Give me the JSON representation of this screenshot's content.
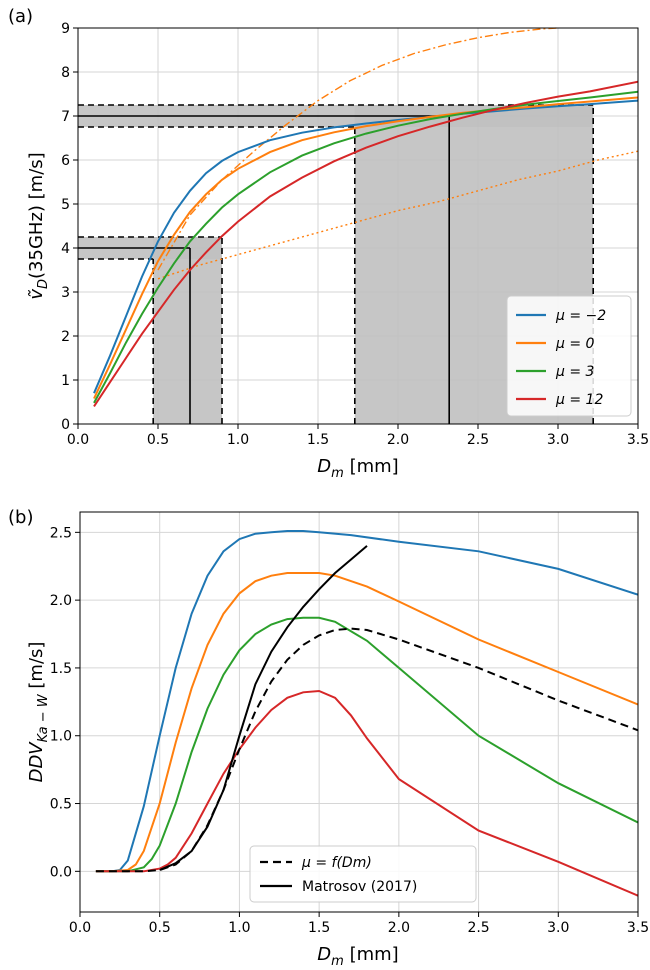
{
  "chart_data": [
    {
      "panel_label": "(a)",
      "type": "line",
      "xlabel_main": "D",
      "xlabel_sub": "m",
      "xlabel_unit": " [mm]",
      "ylabel_pre": "ṽ",
      "ylabel_sub": "D",
      "ylabel_post": "(35GHz) [m/s]",
      "xlim": [
        0.0,
        3.5
      ],
      "ylim": [
        0,
        9
      ],
      "xticks": [
        "0.0",
        "0.5",
        "1.0",
        "1.5",
        "2.0",
        "2.5",
        "3.0",
        "3.5"
      ],
      "yticks": [
        "0",
        "1",
        "2",
        "3",
        "4",
        "5",
        "6",
        "7",
        "8",
        "9"
      ],
      "grid": true,
      "legend_position": "lower-right",
      "x": [
        0.1,
        0.2,
        0.3,
        0.4,
        0.5,
        0.6,
        0.7,
        0.8,
        0.9,
        1.0,
        1.2,
        1.4,
        1.6,
        1.8,
        2.0,
        2.2,
        2.4,
        2.6,
        2.8,
        3.0,
        3.2,
        3.5
      ],
      "series": [
        {
          "name": "μ = −2",
          "color": "#1f77b4",
          "values": [
            0.7,
            1.55,
            2.45,
            3.35,
            4.15,
            4.8,
            5.3,
            5.7,
            5.98,
            6.18,
            6.45,
            6.62,
            6.74,
            6.83,
            6.91,
            6.98,
            7.05,
            7.11,
            7.17,
            7.22,
            7.27,
            7.35
          ]
        },
        {
          "name": "μ = 0",
          "color": "#ff7f0e",
          "values": [
            0.58,
            1.35,
            2.15,
            2.95,
            3.7,
            4.3,
            4.82,
            5.22,
            5.55,
            5.8,
            6.18,
            6.45,
            6.63,
            6.77,
            6.88,
            6.98,
            7.07,
            7.14,
            7.2,
            7.27,
            7.33,
            7.42
          ]
        },
        {
          "name": "μ = 3",
          "color": "#2ca02c",
          "values": [
            0.48,
            1.15,
            1.85,
            2.5,
            3.1,
            3.65,
            4.15,
            4.55,
            4.92,
            5.22,
            5.72,
            6.1,
            6.38,
            6.6,
            6.78,
            6.93,
            7.05,
            7.16,
            7.26,
            7.34,
            7.42,
            7.55
          ]
        },
        {
          "name": "μ = 12",
          "color": "#d62728",
          "values": [
            0.4,
            0.95,
            1.5,
            2.05,
            2.55,
            3.05,
            3.5,
            3.9,
            4.27,
            4.6,
            5.17,
            5.6,
            5.97,
            6.28,
            6.54,
            6.76,
            6.96,
            7.14,
            7.3,
            7.44,
            7.56,
            7.78
          ]
        }
      ],
      "dashdot_curve": {
        "color": "#ff7f0e",
        "x": [
          0.5,
          0.7,
          0.9,
          1.1,
          1.3,
          1.5,
          1.7,
          1.9,
          2.1,
          2.3,
          2.5,
          2.7,
          2.9,
          3.0
        ],
        "values": [
          3.5,
          4.75,
          5.55,
          6.2,
          6.8,
          7.35,
          7.8,
          8.15,
          8.42,
          8.62,
          8.78,
          8.9,
          8.98,
          9.0
        ]
      },
      "dotted_curve": {
        "color": "#ff7f0e",
        "x": [
          0.5,
          0.75,
          1.0,
          1.25,
          1.5,
          1.75,
          2.0,
          2.25,
          2.5,
          2.75,
          3.0,
          3.25,
          3.5
        ],
        "values": [
          3.3,
          3.6,
          3.85,
          4.1,
          4.35,
          4.6,
          4.85,
          5.05,
          5.3,
          5.55,
          5.75,
          6.0,
          6.2
        ]
      },
      "shaded_regions": [
        {
          "x": [
            0.0,
            0.9
          ],
          "y": [
            3.75,
            4.25
          ]
        },
        {
          "x": [
            0.47,
            0.9
          ],
          "y": [
            0,
            4.25
          ]
        },
        {
          "x": [
            0.0,
            3.22
          ],
          "y": [
            6.75,
            7.25
          ]
        },
        {
          "x": [
            1.73,
            3.22
          ],
          "y": [
            0,
            7.25
          ]
        }
      ],
      "dashed_h_lines": [
        {
          "y": 3.75,
          "x": [
            0.0,
            0.47
          ]
        },
        {
          "y": 4.25,
          "x": [
            0.0,
            0.9
          ]
        },
        {
          "y": 6.75,
          "x": [
            0.0,
            1.73
          ]
        },
        {
          "y": 7.25,
          "x": [
            0.0,
            3.22
          ]
        }
      ],
      "dashed_v_lines": [
        {
          "x": 0.47,
          "y": [
            0,
            3.75
          ]
        },
        {
          "x": 0.9,
          "y": [
            0,
            4.25
          ]
        },
        {
          "x": 1.73,
          "y": [
            0,
            6.75
          ]
        },
        {
          "x": 3.22,
          "y": [
            0,
            7.25
          ]
        }
      ],
      "solid_h_lines": [
        {
          "y": 4.0,
          "x": [
            0.0,
            0.7
          ]
        },
        {
          "y": 7.0,
          "x": [
            0.0,
            2.32
          ]
        }
      ],
      "solid_v_lines": [
        {
          "x": 0.7,
          "y": [
            0,
            4.0
          ]
        },
        {
          "x": 2.32,
          "y": [
            0,
            7.0
          ]
        }
      ]
    },
    {
      "panel_label": "(b)",
      "type": "line",
      "xlabel_main": "D",
      "xlabel_sub": "m",
      "xlabel_unit": " [mm]",
      "ylabel_pre": "DDV",
      "ylabel_sub": "Ka − W",
      "ylabel_post": " [m/s]",
      "xlim": [
        0.0,
        3.5
      ],
      "ylim": [
        -0.3,
        2.65
      ],
      "xticks": [
        "0.0",
        "0.5",
        "1.0",
        "1.5",
        "2.0",
        "2.5",
        "3.0",
        "3.5"
      ],
      "yticks": [
        "0.0",
        "0.5",
        "1.0",
        "1.5",
        "2.0",
        "2.5"
      ],
      "ytick_values": [
        0.0,
        0.5,
        1.0,
        1.5,
        2.0,
        2.5
      ],
      "grid": true,
      "legend_position": "lower-center",
      "series": [
        {
          "name": "",
          "color": "#1f77b4",
          "dash": "",
          "x": [
            0.1,
            0.2,
            0.25,
            0.3,
            0.4,
            0.5,
            0.6,
            0.7,
            0.8,
            0.9,
            1.0,
            1.1,
            1.2,
            1.3,
            1.4,
            1.5,
            1.7,
            2.0,
            2.5,
            3.0,
            3.5
          ],
          "values": [
            0,
            0,
            0.01,
            0.08,
            0.48,
            1.0,
            1.5,
            1.9,
            2.18,
            2.36,
            2.45,
            2.49,
            2.5,
            2.51,
            2.51,
            2.5,
            2.48,
            2.43,
            2.36,
            2.23,
            2.04
          ]
        },
        {
          "name": "",
          "color": "#ff7f0e",
          "dash": "",
          "x": [
            0.1,
            0.2,
            0.3,
            0.35,
            0.4,
            0.5,
            0.6,
            0.7,
            0.8,
            0.9,
            1.0,
            1.1,
            1.2,
            1.3,
            1.4,
            1.5,
            1.6,
            1.8,
            2.0,
            2.5,
            3.0,
            3.5
          ],
          "values": [
            0,
            0,
            0.01,
            0.05,
            0.15,
            0.5,
            0.95,
            1.35,
            1.67,
            1.9,
            2.05,
            2.14,
            2.18,
            2.2,
            2.2,
            2.2,
            2.18,
            2.1,
            1.99,
            1.71,
            1.47,
            1.23
          ]
        },
        {
          "name": "",
          "color": "#2ca02c",
          "dash": "",
          "x": [
            0.1,
            0.3,
            0.4,
            0.45,
            0.5,
            0.6,
            0.7,
            0.8,
            0.9,
            1.0,
            1.1,
            1.2,
            1.3,
            1.4,
            1.5,
            1.6,
            1.8,
            2.0,
            2.5,
            3.0,
            3.5
          ],
          "values": [
            0,
            0,
            0.03,
            0.09,
            0.19,
            0.5,
            0.88,
            1.2,
            1.45,
            1.63,
            1.75,
            1.82,
            1.86,
            1.87,
            1.87,
            1.84,
            1.7,
            1.5,
            1.0,
            0.65,
            0.36
          ]
        },
        {
          "name": "",
          "color": "#d62728",
          "dash": "",
          "x": [
            0.1,
            0.4,
            0.5,
            0.55,
            0.6,
            0.7,
            0.8,
            0.9,
            1.0,
            1.1,
            1.2,
            1.3,
            1.4,
            1.5,
            1.6,
            1.7,
            1.8,
            2.0,
            2.5,
            3.0,
            3.5
          ],
          "values": [
            0,
            0,
            0.02,
            0.05,
            0.1,
            0.28,
            0.5,
            0.72,
            0.9,
            1.06,
            1.19,
            1.28,
            1.32,
            1.33,
            1.28,
            1.15,
            0.98,
            0.68,
            0.3,
            0.07,
            -0.18
          ]
        },
        {
          "name": "μ = f(Dm)",
          "color": "#000000",
          "dash": "8,5",
          "x": [
            0.1,
            0.4,
            0.5,
            0.6,
            0.7,
            0.8,
            0.9,
            1.0,
            1.1,
            1.2,
            1.3,
            1.4,
            1.5,
            1.6,
            1.7,
            1.8,
            2.0,
            2.5,
            3.0,
            3.5
          ],
          "values": [
            0,
            0,
            0.01,
            0.05,
            0.15,
            0.34,
            0.6,
            0.9,
            1.18,
            1.4,
            1.56,
            1.67,
            1.74,
            1.78,
            1.79,
            1.78,
            1.71,
            1.5,
            1.26,
            1.04
          ]
        },
        {
          "name": "Matrosov (2017)",
          "color": "#000000",
          "dash": "",
          "x": [
            0.5,
            0.6,
            0.7,
            0.8,
            0.9,
            1.0,
            1.1,
            1.2,
            1.3,
            1.4,
            1.5,
            1.6,
            1.7,
            1.8
          ],
          "values": [
            0.01,
            0.06,
            0.15,
            0.33,
            0.6,
            1.0,
            1.38,
            1.62,
            1.8,
            1.95,
            2.08,
            2.2,
            2.3,
            2.4
          ]
        }
      ]
    }
  ]
}
